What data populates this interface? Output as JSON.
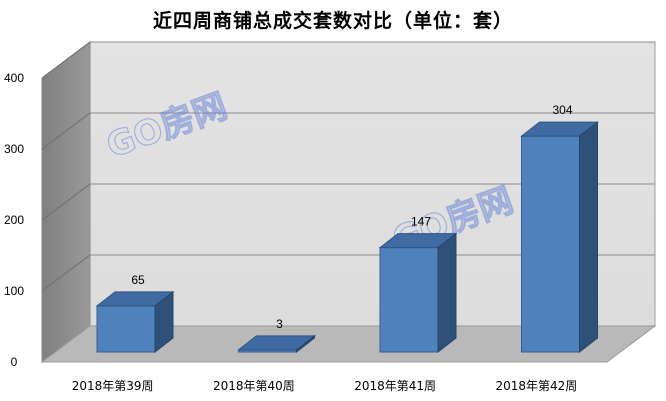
{
  "chart_data": {
    "type": "bar",
    "title": "近四周商铺总成交套数对比（单位：套）",
    "categories": [
      "2018年第39周",
      "2018年第40周",
      "2018年第41周",
      "2018年第42周"
    ],
    "values": [
      65,
      3,
      147,
      304
    ],
    "data_labels": [
      "65",
      "3",
      "147",
      "304"
    ],
    "y_ticks": [
      "0",
      "100",
      "200",
      "300",
      "400"
    ],
    "ylim": [
      0,
      400
    ],
    "grid": true,
    "legend": "none",
    "bar_color": "#4f81bd",
    "watermark": "GO房网"
  }
}
